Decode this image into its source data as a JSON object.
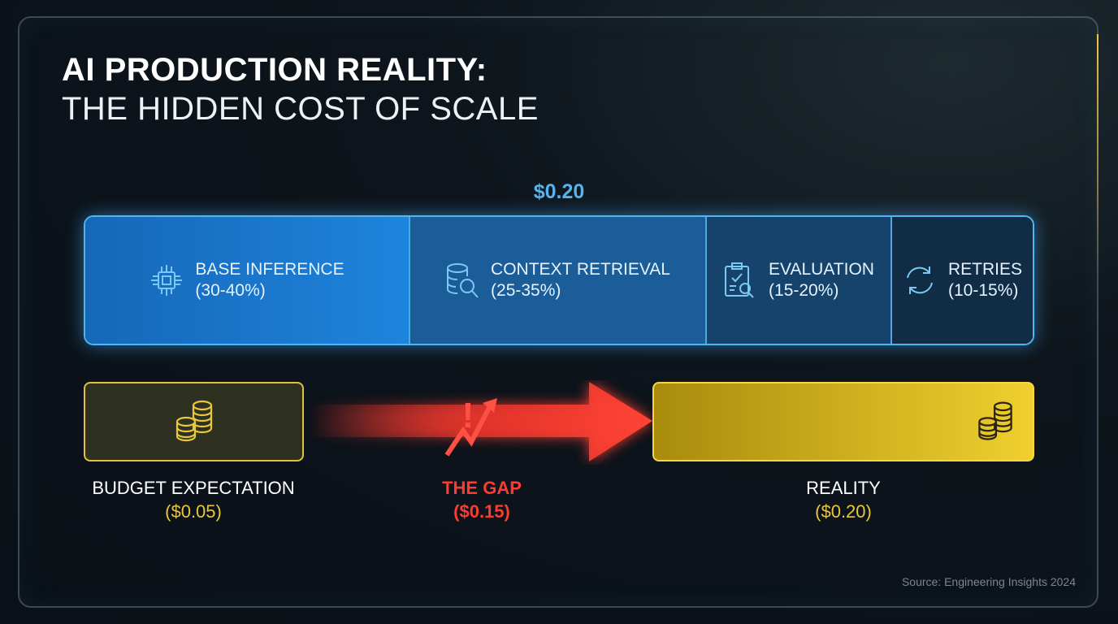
{
  "title": {
    "line1": "AI PRODUCTION REALITY:",
    "line2": "THE HIDDEN COST OF SCALE"
  },
  "total_cost": "$0.20",
  "breakdown": [
    {
      "label": "BASE INFERENCE",
      "range": "(30-40%)",
      "icon": "chip-icon"
    },
    {
      "label": "CONTEXT RETRIEVAL",
      "range": "(25-35%)",
      "icon": "database-search-icon"
    },
    {
      "label": "EVALUATION",
      "range": "(15-20%)",
      "icon": "clipboard-check-icon"
    },
    {
      "label": "RETRIES",
      "range": "(10-15%)",
      "icon": "refresh-icon"
    }
  ],
  "comparison": {
    "budget": {
      "label": "BUDGET EXPECTATION",
      "value": "($0.05)"
    },
    "gap": {
      "label": "THE GAP",
      "value": "($0.15)"
    },
    "reality": {
      "label": "REALITY",
      "value": "($0.20)"
    }
  },
  "colors": {
    "blue": "#4fb6f5",
    "yellow": "#f0cf2e",
    "red": "#ff3b30"
  },
  "source": "Source: Engineering Insights 2024"
}
